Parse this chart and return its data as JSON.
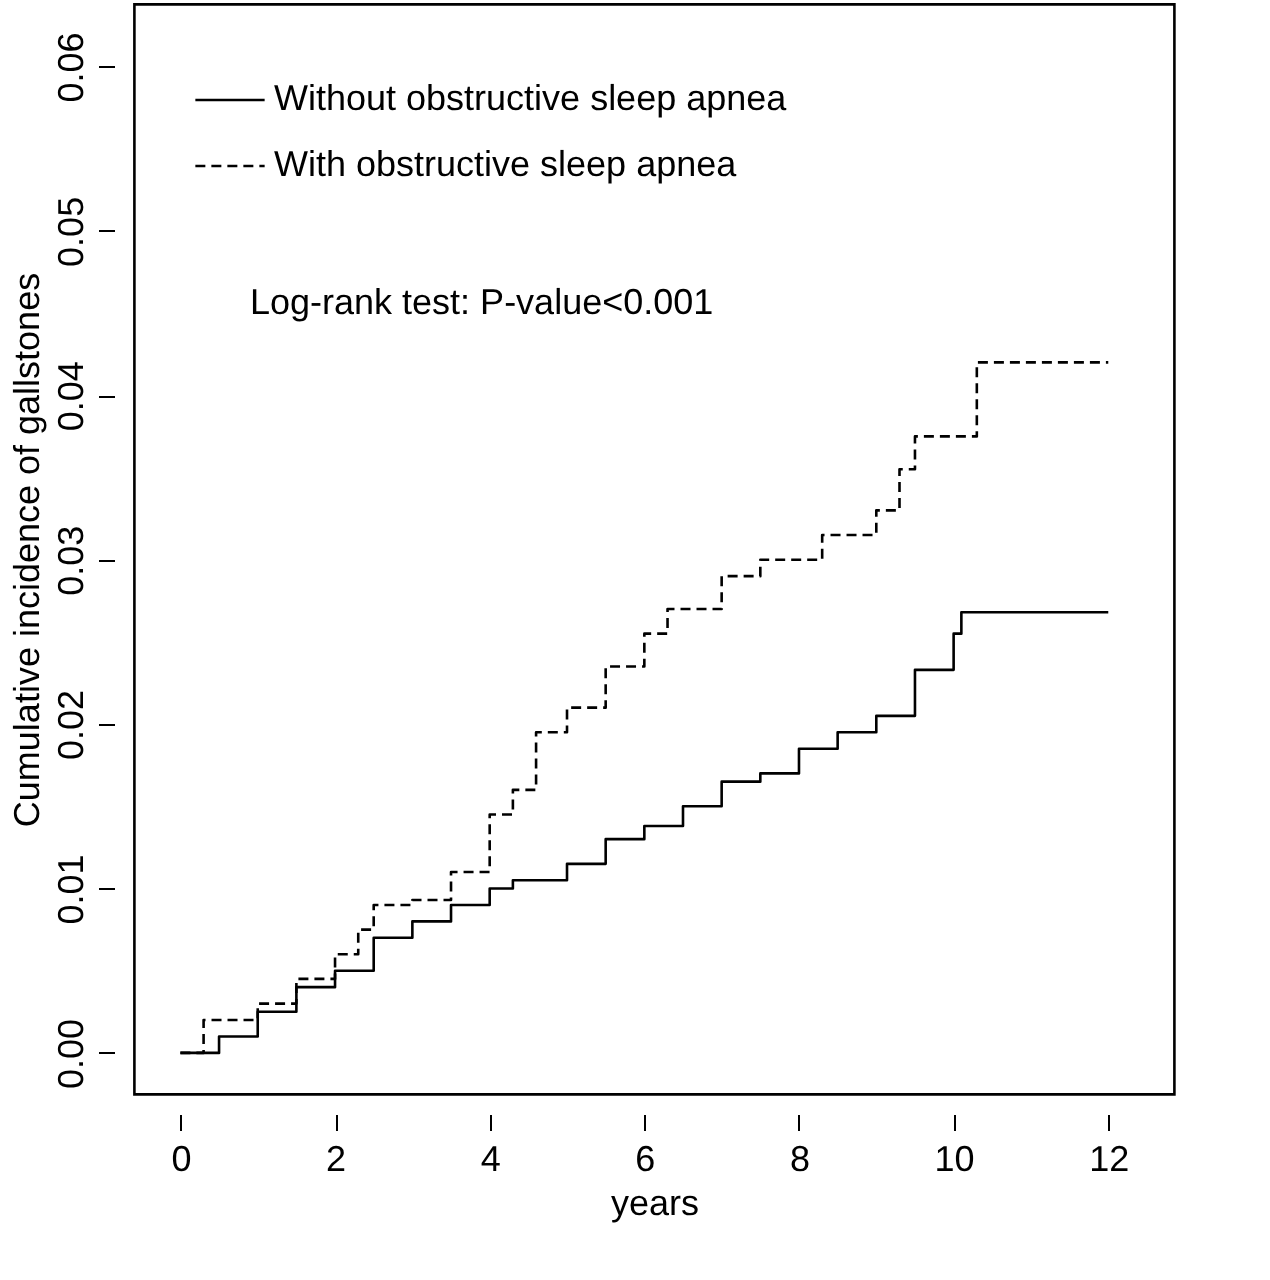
{
  "chart_data": {
    "type": "step",
    "xlabel": "years",
    "ylabel": "Cumulative incidence of gallstones",
    "annotations": [
      "Log-rank test: P-value<0.001"
    ],
    "xlim": [
      -0.6,
      12.85
    ],
    "xticks": [
      0,
      2,
      4,
      6,
      8,
      10,
      12
    ],
    "ylim": [
      -0.0025,
      0.0638
    ],
    "yticks": [
      {
        "value": 0,
        "label": "0.00"
      },
      {
        "value": 0.01,
        "label": "0.01"
      },
      {
        "value": 0.02,
        "label": "0.02"
      },
      {
        "value": 0.03,
        "label": "0.03"
      },
      {
        "value": 0.04,
        "label": "0.04"
      },
      {
        "value": 0.05,
        "label": "0.05"
      },
      {
        "value": 0.06,
        "label": "0.06"
      }
    ],
    "grid": false,
    "legend": "top left",
    "marker": "none",
    "series": [
      {
        "name": "Without obstructive sleep apnea",
        "color": "#000000",
        "line_style": "solid",
        "x": [
          0,
          0.5,
          1,
          1.5,
          2,
          2.5,
          3,
          3.5,
          4,
          4.3,
          5,
          5.5,
          6,
          6.5,
          7,
          7.5,
          8,
          8.5,
          9,
          9.5,
          10,
          10.1,
          12
        ],
        "values": [
          0,
          0.001,
          0.0025,
          0.004,
          0.005,
          0.007,
          0.008,
          0.009,
          0.01,
          0.0105,
          0.0115,
          0.013,
          0.0138,
          0.015,
          0.0165,
          0.017,
          0.0185,
          0.0195,
          0.0205,
          0.0233,
          0.0255,
          0.0268,
          0.0268
        ]
      },
      {
        "name": "With obstructive sleep apnea",
        "color": "#000000",
        "line_style": "dashed",
        "x": [
          0,
          0.3,
          1,
          1.5,
          2,
          2.3,
          2.5,
          3,
          3.5,
          4,
          4.3,
          4.6,
          5,
          5.5,
          6,
          6.3,
          7,
          7.5,
          8.3,
          9,
          9.3,
          9.5,
          10.3,
          12
        ],
        "values": [
          0,
          0.002,
          0.003,
          0.0045,
          0.006,
          0.0075,
          0.009,
          0.0093,
          0.011,
          0.0145,
          0.016,
          0.0195,
          0.021,
          0.0235,
          0.0255,
          0.027,
          0.029,
          0.03,
          0.0315,
          0.033,
          0.0355,
          0.0375,
          0.042,
          0.042
        ]
      }
    ]
  }
}
